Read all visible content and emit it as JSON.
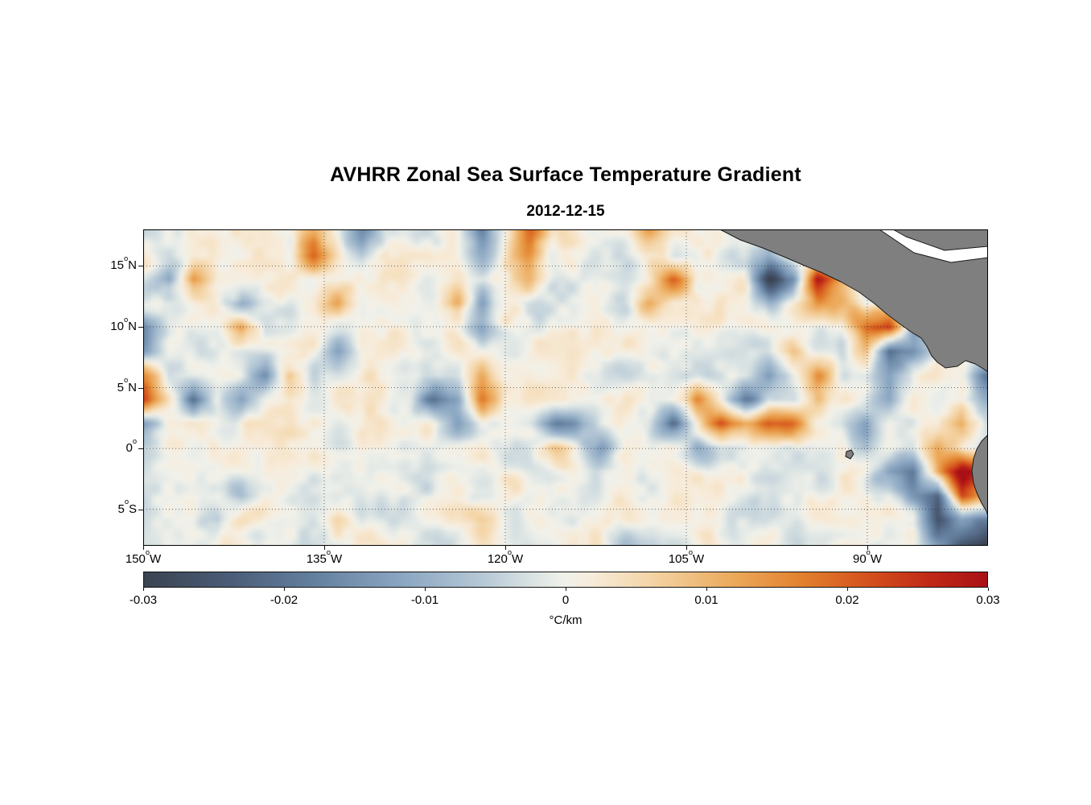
{
  "title": "AVHRR Zonal Sea Surface Temperature Gradient",
  "subtitle": "2012-12-15",
  "deg": "o",
  "axes": {
    "x_ticks": [
      {
        "num": "150",
        "hemi": "W",
        "lon": -150
      },
      {
        "num": "135",
        "hemi": "W",
        "lon": -135
      },
      {
        "num": "120",
        "hemi": "W",
        "lon": -120
      },
      {
        "num": "105",
        "hemi": "W",
        "lon": -105
      },
      {
        "num": "90",
        "hemi": "W",
        "lon": -90
      }
    ],
    "y_ticks": [
      {
        "num": "15",
        "hemi": "N",
        "lat": 15
      },
      {
        "num": "10",
        "hemi": "N",
        "lat": 10
      },
      {
        "num": "5",
        "hemi": "N",
        "lat": 5
      },
      {
        "num": "0",
        "hemi": "",
        "lat": 0
      },
      {
        "num": "5",
        "hemi": "S",
        "lat": -5
      }
    ]
  },
  "map": {
    "lon_min": -150,
    "lon_max": -80,
    "lat_min": -8,
    "lat_max": 18,
    "grid_color": "#3a3a3a",
    "border_color": "#000000"
  },
  "colorbar": {
    "ticks": [
      "-0.03",
      "-0.02",
      "-0.01",
      "0",
      "0.01",
      "0.02",
      "0.03"
    ],
    "label": "°C/km",
    "min": -0.03,
    "max": 0.03,
    "stops": [
      {
        "p": 0.0,
        "c": "#3b4351"
      },
      {
        "p": 0.1,
        "c": "#4a5c77"
      },
      {
        "p": 0.2,
        "c": "#64809f"
      },
      {
        "p": 0.3,
        "c": "#88a4c0"
      },
      {
        "p": 0.4,
        "c": "#b5c8d6"
      },
      {
        "p": 0.47,
        "c": "#e0e7e5"
      },
      {
        "p": 0.5,
        "c": "#f1f1ea"
      },
      {
        "p": 0.53,
        "c": "#f7ecdb"
      },
      {
        "p": 0.6,
        "c": "#f4d5a7"
      },
      {
        "p": 0.7,
        "c": "#eca95a"
      },
      {
        "p": 0.78,
        "c": "#e2812e"
      },
      {
        "p": 0.86,
        "c": "#d4501d"
      },
      {
        "p": 0.93,
        "c": "#c22a17"
      },
      {
        "p": 1.0,
        "c": "#a81016"
      }
    ]
  },
  "land": {
    "land_color": "#7f7f7f",
    "water_color": "#ffffff",
    "coast_color": "#1a1a1a",
    "polygons": [
      {
        "name": "central-america-land",
        "fill": "land",
        "points": [
          [
            717,
            0
          ],
          [
            742,
            13
          ],
          [
            770,
            23
          ],
          [
            794,
            33
          ],
          [
            822,
            45
          ],
          [
            842,
            53
          ],
          [
            867,
            65
          ],
          [
            890,
            78
          ],
          [
            910,
            93
          ],
          [
            924,
            105
          ],
          [
            940,
            117
          ],
          [
            954,
            127
          ],
          [
            967,
            135
          ],
          [
            974,
            145
          ],
          [
            980,
            157
          ],
          [
            987,
            165
          ],
          [
            997,
            172
          ],
          [
            1012,
            170
          ],
          [
            1022,
            163
          ],
          [
            1034,
            167
          ],
          [
            1044,
            173
          ],
          [
            1050,
            177
          ],
          [
            1050,
            0
          ]
        ]
      },
      {
        "name": "caribbean-inlet",
        "fill": "water",
        "points": [
          [
            915,
            0
          ],
          [
            932,
            0
          ],
          [
            948,
            9
          ],
          [
            996,
            26
          ],
          [
            1050,
            21
          ],
          [
            1050,
            35
          ],
          [
            1004,
            41
          ],
          [
            958,
            29
          ]
        ]
      },
      {
        "name": "south-america-land",
        "fill": "land",
        "points": [
          [
            1050,
            255
          ],
          [
            1042,
            263
          ],
          [
            1036,
            273
          ],
          [
            1032,
            285
          ],
          [
            1030,
            300
          ],
          [
            1032,
            315
          ],
          [
            1036,
            327
          ],
          [
            1042,
            340
          ],
          [
            1048,
            350
          ],
          [
            1050,
            356
          ]
        ]
      },
      {
        "name": "galapagos-island",
        "fill": "land",
        "points": [
          [
            874,
            276
          ],
          [
            880,
            274
          ],
          [
            883,
            279
          ],
          [
            879,
            285
          ],
          [
            873,
            282
          ]
        ]
      }
    ]
  },
  "chart_data": {
    "type": "heatmap",
    "title": "AVHRR Zonal Sea Surface Temperature Gradient",
    "date": "2012-12-15",
    "units": "°C/km",
    "xlabel_ticks": [
      "150°W",
      "135°W",
      "120°W",
      "105°W",
      "90°W"
    ],
    "ylabel_ticks": [
      "15°N",
      "10°N",
      "5°N",
      "0°",
      "5°S"
    ],
    "lon_range": [
      -150,
      -80
    ],
    "lat_range": [
      -8,
      18
    ],
    "value_range": [
      -0.03,
      0.03
    ],
    "background_texture_amplitude": 0.004,
    "grid_lons": [
      -150,
      -148,
      -146,
      -144,
      -142,
      -140,
      -138,
      -136,
      -134,
      -132,
      -130,
      -128,
      -126,
      -124,
      -122,
      -120,
      -118,
      -116,
      -114,
      -112,
      -110,
      -108,
      -106,
      -104,
      -102,
      -100,
      -98,
      -96,
      -94,
      -92,
      -90,
      -88,
      -86,
      -84,
      -82,
      -80
    ],
    "grid_lats": [
      18,
      16,
      14,
      12,
      10,
      8,
      6,
      4,
      2,
      0,
      -2,
      -4,
      -6,
      -8
    ],
    "values": [
      [
        0,
        0,
        0,
        0,
        0,
        0,
        0,
        0.012,
        0,
        -0.015,
        0,
        0,
        0,
        0,
        -0.015,
        0,
        0.02,
        0,
        0,
        0,
        0,
        0.012,
        0,
        0,
        0,
        0,
        0,
        0,
        0,
        0,
        0,
        0,
        0,
        0,
        0,
        0
      ],
      [
        0,
        0,
        0,
        0,
        0,
        0,
        0,
        0.018,
        0,
        -0.008,
        0,
        0,
        0,
        0,
        -0.008,
        0,
        0.015,
        0,
        0,
        0,
        0,
        0,
        0,
        0,
        0,
        0,
        -0.01,
        0,
        0,
        0,
        0,
        0,
        0,
        0,
        0,
        0
      ],
      [
        0,
        -0.01,
        0.012,
        0,
        0,
        0,
        0,
        0,
        0,
        0,
        0,
        0,
        0,
        0,
        0,
        0,
        0.012,
        0,
        0,
        0,
        0,
        0,
        0.02,
        0,
        0,
        0,
        -0.03,
        -0.018,
        0.03,
        0.012,
        0,
        0,
        0,
        0,
        0,
        0
      ],
      [
        0,
        0,
        0,
        0,
        -0.01,
        0,
        0,
        0,
        0.012,
        0,
        0,
        0,
        0,
        0.012,
        -0.015,
        0,
        0,
        0,
        0,
        0,
        0,
        0.012,
        0,
        0,
        0,
        0,
        -0.012,
        0,
        0.015,
        0.01,
        0,
        0,
        0,
        0,
        0,
        0
      ],
      [
        -0.015,
        0,
        0,
        0,
        0.015,
        0,
        0,
        0,
        0,
        0,
        0,
        0,
        0,
        0,
        -0.015,
        0,
        0,
        0,
        0,
        0,
        0,
        0,
        0,
        0,
        0,
        0,
        0,
        0,
        0,
        0,
        0.018,
        0.022,
        -0.012,
        0,
        0,
        0
      ],
      [
        -0.01,
        0,
        0,
        0,
        0,
        0,
        0,
        0,
        -0.01,
        0,
        0,
        0,
        0,
        0,
        0,
        0,
        0,
        0,
        0,
        0,
        0,
        0,
        0,
        0,
        0,
        0,
        0,
        0.01,
        0,
        0,
        0.012,
        -0.022,
        -0.015,
        0,
        0,
        0
      ],
      [
        0.015,
        0,
        0,
        0,
        0,
        -0.012,
        0.012,
        0,
        0,
        0,
        0,
        0,
        0,
        0,
        0.015,
        0,
        0,
        0,
        0,
        0,
        0,
        0,
        0,
        0,
        0,
        0,
        -0.012,
        0,
        0.012,
        0,
        0,
        -0.012,
        0,
        0,
        0,
        -0.018
      ],
      [
        0.018,
        0,
        -0.02,
        0,
        -0.012,
        0,
        0,
        0,
        0,
        0,
        0,
        0,
        -0.018,
        -0.015,
        0.02,
        0,
        0,
        0,
        0,
        0,
        0,
        0,
        0,
        0.015,
        0,
        -0.018,
        0,
        0,
        0.012,
        0,
        0,
        -0.01,
        0,
        0,
        0,
        -0.012
      ],
      [
        -0.01,
        0,
        0,
        0,
        0,
        0,
        0,
        0,
        0,
        0,
        0,
        0,
        0,
        -0.012,
        0,
        0,
        0,
        -0.018,
        -0.012,
        0,
        0,
        0,
        -0.022,
        0,
        0.02,
        0.012,
        0.02,
        0.015,
        0,
        0,
        -0.012,
        0,
        0,
        0,
        0.015,
        0
      ],
      [
        0,
        0,
        0,
        0,
        0,
        0,
        0,
        0,
        0,
        0,
        0,
        0,
        0,
        0,
        0,
        0,
        0,
        0.01,
        0,
        -0.012,
        0,
        0,
        0,
        -0.01,
        0,
        0,
        0,
        0,
        0,
        0,
        -0.01,
        0,
        0,
        0.012,
        0,
        0
      ],
      [
        0,
        0,
        0,
        0,
        0,
        0,
        0,
        0,
        0,
        0,
        0,
        0,
        0,
        0,
        0,
        0,
        0,
        0,
        0,
        0,
        0,
        0,
        0,
        0,
        0,
        0,
        0,
        0,
        0,
        0,
        0,
        -0.01,
        -0.015,
        0.012,
        0.03,
        0.02
      ],
      [
        0,
        0,
        0,
        0,
        -0.008,
        0,
        0,
        0,
        0,
        0,
        0,
        0,
        0,
        0,
        0,
        0,
        0,
        0,
        0,
        0,
        0,
        0,
        0,
        0,
        0,
        0,
        0,
        0,
        0,
        0,
        0,
        0,
        -0.012,
        -0.022,
        0.02,
        0.01
      ],
      [
        0,
        0,
        0,
        -0.008,
        0,
        0,
        0,
        0,
        0.008,
        0,
        0,
        0,
        0,
        0,
        0.008,
        0,
        0,
        0,
        0,
        0,
        0,
        0,
        0,
        0,
        0,
        0,
        0,
        0,
        0,
        0,
        0,
        0,
        0,
        -0.025,
        -0.015,
        -0.02
      ],
      [
        0,
        0,
        0,
        0,
        0,
        0,
        0,
        0,
        0,
        0,
        0,
        0,
        0,
        0,
        0,
        0,
        0,
        0,
        0,
        0,
        -0.008,
        0,
        0,
        0,
        0,
        0,
        0,
        0,
        0,
        0,
        0,
        0,
        0,
        -0.015,
        -0.028,
        -0.03
      ]
    ]
  }
}
